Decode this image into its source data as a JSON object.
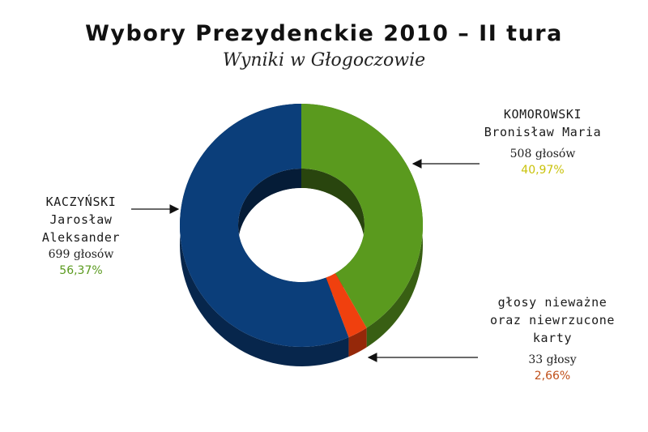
{
  "title": "Wybory Prezydenckie 2010 – II tura",
  "subtitle": "Wyniki w Głogoczowie",
  "colors": {
    "kaczynski": "#0b3e7a",
    "komorowski": "#5a9a1e",
    "invalid": "#f0400e",
    "pct_kaczynski": "#5a9a1e",
    "pct_komorowski": "#c9c20a",
    "pct_invalid": "#c0501a"
  },
  "labels": {
    "kaczynski": {
      "name_lines": [
        "KACZYŃSKI",
        "Jarosław",
        "Aleksander"
      ],
      "votes": "699 głosów",
      "pct": "56,37%"
    },
    "komorowski": {
      "name_lines": [
        "KOMOROWSKI",
        "Bronisław Maria"
      ],
      "votes": "508 głosów",
      "pct": "40,97%"
    },
    "invalid": {
      "name_lines": [
        "głosy nieważne",
        "oraz niewrzucone",
        "karty"
      ],
      "votes": "33 głosy",
      "pct": "2,66%"
    }
  },
  "chart_data": {
    "type": "pie",
    "style": "3d-donut",
    "title": "Wybory Prezydenckie 2010 – II tura",
    "subtitle": "Wyniki w Głogoczowie",
    "slices": [
      {
        "name": "KOMOROWSKI Bronisław Maria",
        "value": 508,
        "percent": 40.97,
        "color": "#5a9a1e"
      },
      {
        "name": "głosy nieważne oraz niewrzucone karty",
        "value": 33,
        "percent": 2.66,
        "color": "#f0400e"
      },
      {
        "name": "KACZYŃSKI Jarosław Aleksander",
        "value": 699,
        "percent": 56.37,
        "color": "#0b3e7a"
      }
    ],
    "start": "12 o'clock",
    "direction": "clockwise"
  }
}
